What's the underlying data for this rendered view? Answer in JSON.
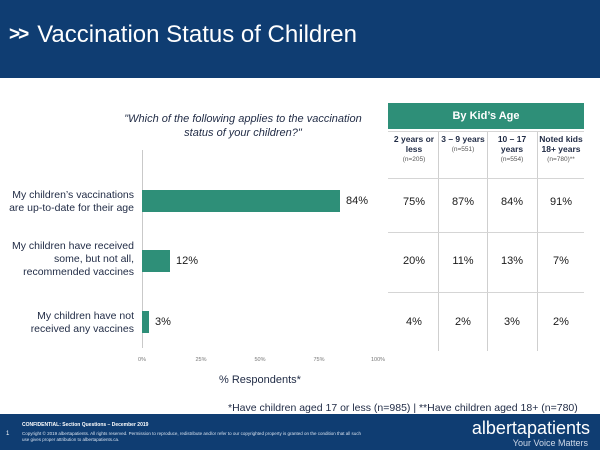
{
  "header": {
    "chevron": ">>",
    "title": "Vaccination Status of Children"
  },
  "question": "\"Which of the following applies to the vaccination status of your children?\"",
  "chart_data": {
    "type": "bar",
    "orientation": "horizontal",
    "categories": [
      "My children’s vaccinations are up-to-date for their age",
      "My children have received some, but not all, recommended vaccines",
      "My children have not received any vaccines"
    ],
    "values": [
      84,
      12,
      3
    ],
    "data_labels": [
      "84%",
      "12%",
      "3%"
    ],
    "xlim": [
      0,
      100
    ],
    "xticks": [
      "0%",
      "25%",
      "50%",
      "75%",
      "100%"
    ],
    "xlabel": "% Respondents*",
    "bar_color": "#2e8f78"
  },
  "table": {
    "title": "By Kid’s Age",
    "columns": [
      {
        "label": "2 years or less",
        "n": "(n=205)"
      },
      {
        "label": "3 – 9 years",
        "n": "(n=551)"
      },
      {
        "label": "10 – 17 years",
        "n": "(n=554)"
      },
      {
        "label": "Noted kids 18+ years",
        "n": "(n=780)**"
      }
    ],
    "rows": [
      [
        "75%",
        "87%",
        "84%",
        "91%"
      ],
      [
        "20%",
        "11%",
        "13%",
        "7%"
      ],
      [
        "4%",
        "2%",
        "3%",
        "2%"
      ]
    ]
  },
  "footnote": "*Have children aged 17 or less (n=985) | **Have children aged 18+ (n=780)",
  "footer": {
    "page_number": "1",
    "confidential": "CONFIDENTIAL: Section Questions – December 2019",
    "copyright": "Copyright © 2019 albertapatients. All rights reserved. Permission to reproduce, redistribute and/or refer to our copyrighted property is granted on the condition that all such use gives proper attribution to albertapatients.ca.",
    "brand": "albertapatients",
    "tagline": "Your Voice Matters"
  },
  "colors": {
    "header_bg": "#0f3d72",
    "accent": "#2e8f78"
  }
}
